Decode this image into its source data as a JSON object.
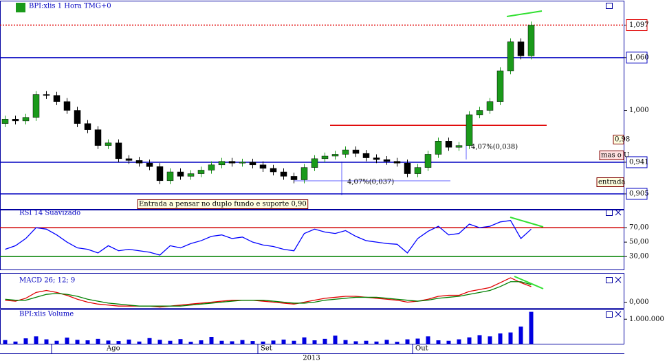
{
  "chart_data": [
    {
      "type": "candlestick",
      "title": "BPI:xlis 1 Hora TMG+0",
      "categories": [
        null,
        null,
        null,
        null,
        null,
        "Ago",
        null,
        null,
        null,
        null,
        null,
        null,
        null,
        null,
        null,
        null,
        null,
        null,
        null,
        null,
        null,
        null,
        null,
        null,
        null,
        "Set",
        null,
        null,
        null,
        null,
        null,
        null,
        null,
        null,
        null,
        null,
        null,
        null,
        null,
        null,
        "Out",
        null,
        null,
        null,
        null,
        null,
        null,
        null,
        null,
        null,
        null,
        null
      ],
      "x_title": "2013",
      "open": [
        0.985,
        0.99,
        0.988,
        0.992,
        1.018,
        1.017,
        1.01,
        1.0,
        0.985,
        0.978,
        0.96,
        0.963,
        0.945,
        0.943,
        0.94,
        0.936,
        0.92,
        0.93,
        0.925,
        0.928,
        0.932,
        0.938,
        0.942,
        0.94,
        0.941,
        0.938,
        0.934,
        0.93,
        0.925,
        0.921,
        0.935,
        0.945,
        0.948,
        0.95,
        0.955,
        0.951,
        0.946,
        0.944,
        0.942,
        0.94,
        0.928,
        0.935,
        0.95,
        0.965,
        0.958,
        0.96,
        0.995,
        1.0,
        1.01,
        1.045,
        1.078,
        1.062
      ],
      "high": [
        0.994,
        0.994,
        0.996,
        1.022,
        1.022,
        1.021,
        1.014,
        1.004,
        0.989,
        0.982,
        0.967,
        0.967,
        0.949,
        0.947,
        0.944,
        0.94,
        0.934,
        0.934,
        0.932,
        0.936,
        0.942,
        0.946,
        0.946,
        0.945,
        0.945,
        0.942,
        0.938,
        0.934,
        0.929,
        0.939,
        0.949,
        0.952,
        0.954,
        0.959,
        0.959,
        0.955,
        0.95,
        0.948,
        0.946,
        0.944,
        0.939,
        0.954,
        0.969,
        0.969,
        0.964,
        0.999,
        1.004,
        1.014,
        1.049,
        1.082,
        1.082,
        1.101
      ],
      "low": [
        0.981,
        0.984,
        0.984,
        0.988,
        1.013,
        1.006,
        0.996,
        0.981,
        0.974,
        0.956,
        0.956,
        0.941,
        0.939,
        0.936,
        0.932,
        0.916,
        0.916,
        0.921,
        0.921,
        0.924,
        0.928,
        0.934,
        0.936,
        0.936,
        0.934,
        0.93,
        0.926,
        0.921,
        0.917,
        0.917,
        0.931,
        0.941,
        0.944,
        0.946,
        0.947,
        0.942,
        0.94,
        0.938,
        0.936,
        0.924,
        0.924,
        0.931,
        0.946,
        0.954,
        0.954,
        0.956,
        0.991,
        0.996,
        1.006,
        1.041,
        1.058,
        1.058
      ],
      "close": [
        0.99,
        0.988,
        0.992,
        1.018,
        1.017,
        1.01,
        1.0,
        0.985,
        0.978,
        0.96,
        0.963,
        0.945,
        0.943,
        0.94,
        0.936,
        0.92,
        0.93,
        0.925,
        0.928,
        0.932,
        0.938,
        0.942,
        0.94,
        0.941,
        0.938,
        0.934,
        0.93,
        0.925,
        0.921,
        0.935,
        0.945,
        0.948,
        0.95,
        0.955,
        0.951,
        0.946,
        0.944,
        0.942,
        0.94,
        0.928,
        0.935,
        0.95,
        0.965,
        0.958,
        0.96,
        0.995,
        1.0,
        1.01,
        1.045,
        1.078,
        1.062,
        1.097
      ],
      "up_color": "#1a9a1a",
      "down_color": "#000000",
      "ylim": [
        0.887,
        1.124
      ],
      "yticks": [
        {
          "value": 1.097,
          "label": "1,097"
        },
        {
          "value": 1.06,
          "label": "1,060"
        },
        {
          "value": 1.0,
          "label": "1,000"
        },
        {
          "value": 0.941,
          "label": "0,941"
        },
        {
          "value": 0.905,
          "label": "0,905"
        }
      ],
      "levels": [
        {
          "value": 1.097,
          "color": "#e00000",
          "dash": "dotted"
        },
        {
          "value": 1.06,
          "color": "#0000c0"
        },
        {
          "value": 0.941,
          "color": "#0000c0"
        },
        {
          "value": 0.905,
          "color": "#0000c0"
        },
        {
          "value": 0.983,
          "color": "#e00000",
          "span": [
            31.5,
            52.5
          ]
        }
      ],
      "annotations": [
        "Entrada a pensar no duplo fundo e suporte 0,90",
        "4,07%(0,037)",
        "4,07%(0,038)",
        "0,98",
        "mas o U",
        "entrada"
      ]
    },
    {
      "type": "line",
      "title": "RSI 14 Suavizado",
      "series": [
        {
          "color": "#0000ff",
          "values": [
            40,
            45,
            55,
            70,
            68,
            60,
            50,
            42,
            40,
            35,
            45,
            38,
            40,
            38,
            36,
            32,
            45,
            42,
            48,
            52,
            58,
            60,
            55,
            57,
            50,
            46,
            44,
            40,
            38,
            62,
            68,
            64,
            62,
            66,
            58,
            52,
            50,
            48,
            47,
            35,
            55,
            65,
            72,
            60,
            62,
            75,
            70,
            72,
            78,
            80,
            55,
            68
          ]
        }
      ],
      "ylim": [
        12,
        95
      ],
      "yticks": [
        {
          "value": 70,
          "label": "70,00"
        },
        {
          "value": 50,
          "label": "50,00"
        },
        {
          "value": 30,
          "label": "30,00"
        }
      ],
      "levels": [
        {
          "value": 70,
          "color": "#d00000"
        },
        {
          "value": 30,
          "color": "#008000"
        }
      ]
    },
    {
      "type": "line",
      "title": "MACD 26; 12; 9",
      "series": [
        {
          "color": "#e00000",
          "values": [
            0.002,
            0.001,
            0.004,
            0.01,
            0.012,
            0.01,
            0.007,
            0.003,
            0,
            -0.002,
            -0.003,
            -0.004,
            -0.004,
            -0.004,
            -0.004,
            -0.005,
            -0.004,
            -0.003,
            -0.002,
            -0.001,
            0,
            0.001,
            0.002,
            0.002,
            0.002,
            0.001,
            0,
            -0.001,
            -0.002,
            0,
            0.002,
            0.004,
            0.005,
            0.006,
            0.006,
            0.005,
            0.004,
            0.003,
            0.002,
            0,
            0.001,
            0.003,
            0.006,
            0.007,
            0.007,
            0.011,
            0.013,
            0.015,
            0.02,
            0.025,
            0.02,
            0.016
          ]
        },
        {
          "color": "#008000",
          "values": [
            0.003,
            0.002,
            0.002,
            0.005,
            0.008,
            0.009,
            0.008,
            0.006,
            0.003,
            0.001,
            -0.001,
            -0.002,
            -0.003,
            -0.004,
            -0.004,
            -0.004,
            -0.004,
            -0.004,
            -0.003,
            -0.002,
            -0.001,
            0,
            0.001,
            0.002,
            0.002,
            0.002,
            0.001,
            0,
            -0.001,
            -0.001,
            0,
            0.002,
            0.003,
            0.004,
            0.005,
            0.005,
            0.005,
            0.004,
            0.003,
            0.002,
            0.001,
            0.002,
            0.004,
            0.005,
            0.006,
            0.008,
            0.01,
            0.012,
            0.016,
            0.021,
            0.021,
            0.018
          ]
        }
      ],
      "ylim": [
        -0.006,
        0.03
      ],
      "yticks": [
        {
          "value": 0,
          "label": "0,000"
        }
      ]
    },
    {
      "type": "bar",
      "title": "BPI:xlis Volume",
      "color": "#0000e0",
      "values": [
        150000,
        90000,
        220000,
        300000,
        180000,
        120000,
        250000,
        160000,
        140000,
        200000,
        130000,
        110000,
        170000,
        90000,
        230000,
        160000,
        120000,
        190000,
        80000,
        140000,
        280000,
        120000,
        100000,
        150000,
        110000,
        90000,
        130000,
        170000,
        120000,
        260000,
        140000,
        200000,
        330000,
        150000,
        100000,
        120000,
        90000,
        160000,
        80000,
        180000,
        210000,
        300000,
        140000,
        120000,
        180000,
        260000,
        350000,
        300000,
        420000,
        460000,
        700000,
        1300000
      ],
      "ylim": [
        0,
        1400000
      ],
      "yticks": [
        {
          "value": 1000000,
          "label": "1.000.000"
        }
      ]
    }
  ]
}
